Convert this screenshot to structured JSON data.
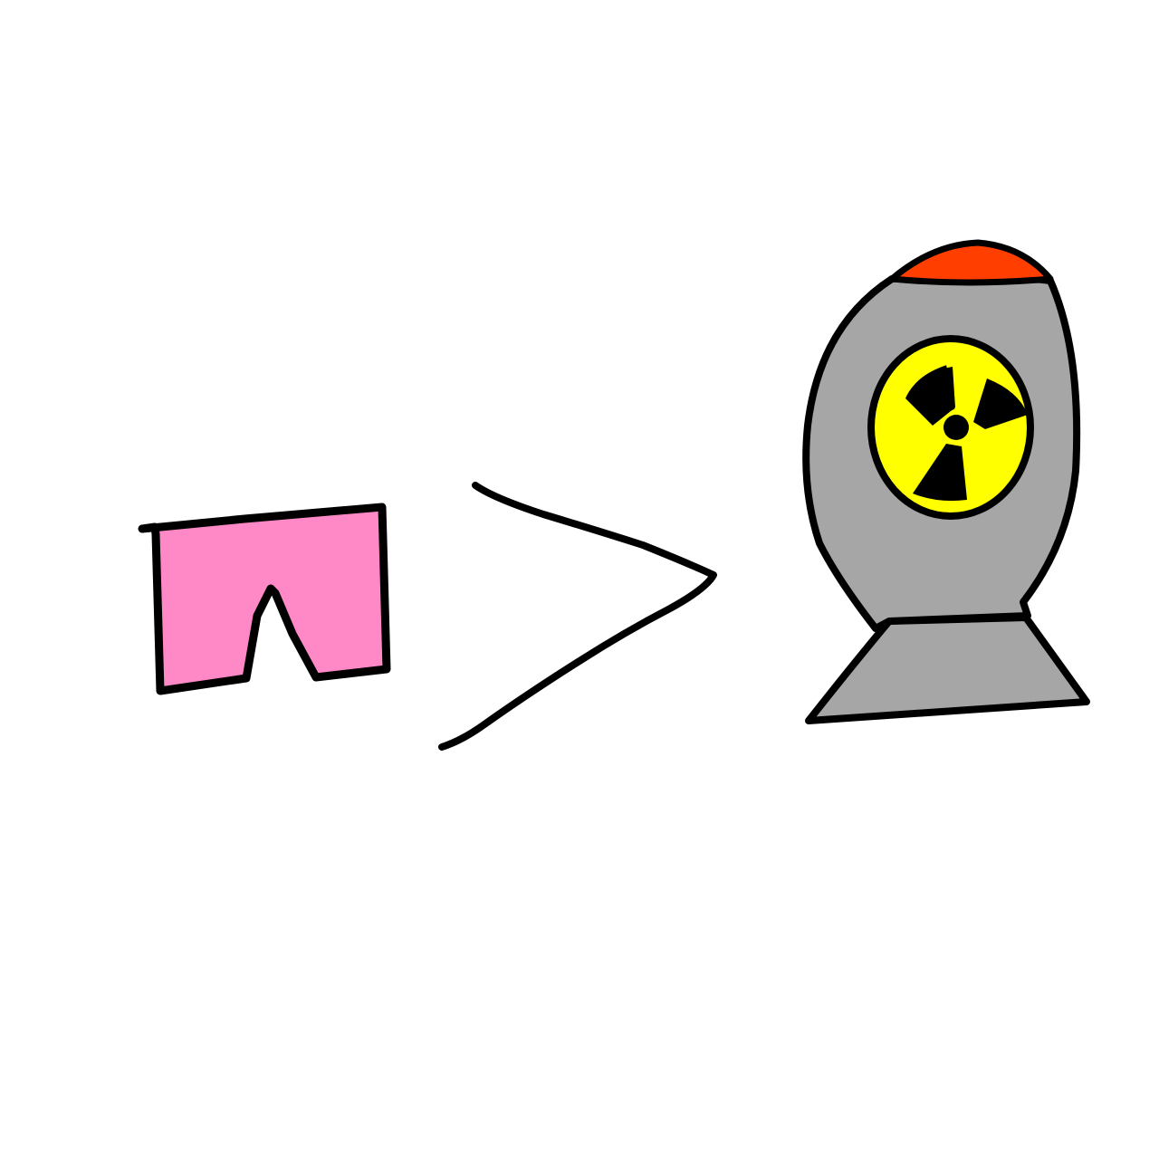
{
  "drawing": {
    "elements": [
      {
        "name": "shorts-icon",
        "fill_color": "#FF88C6"
      },
      {
        "name": "greater-than-symbol",
        "stroke_color": "#000000"
      },
      {
        "name": "nuclear-bomb-icon",
        "body_color": "#A6A6A6",
        "tip_color": "#FF3E00",
        "symbol_background": "#FFFF00",
        "symbol_color": "#000000"
      }
    ]
  }
}
